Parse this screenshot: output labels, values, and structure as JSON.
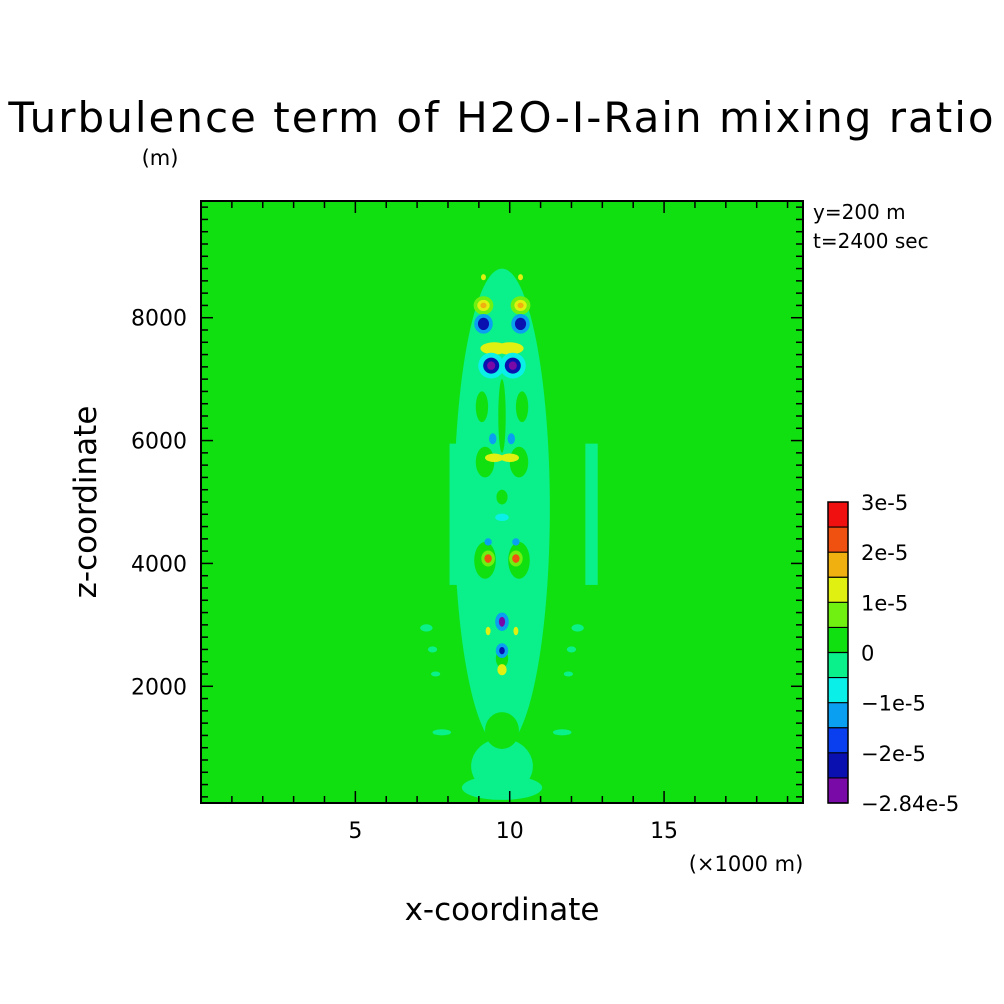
{
  "chart_data": {
    "type": "heatmap",
    "title": "Turbulence term of H2O-I-Rain mixing ratio",
    "units": "(m)",
    "xlabel": "x-coordinate",
    "ylabel": "z-coordinate",
    "x_scale_note": "(×1000 m)",
    "xlim": [
      0,
      19.5
    ],
    "ylim": [
      100,
      9900
    ],
    "x_ticks": [
      5,
      10,
      15
    ],
    "x_tick_labels": [
      "5",
      "10",
      "15"
    ],
    "y_ticks": [
      2000,
      4000,
      6000,
      8000
    ],
    "y_tick_labels": [
      "2000",
      "4000",
      "6000",
      "8000"
    ],
    "info": [
      "y=200 m",
      "t=2400 sec"
    ],
    "colorbar": {
      "levels": [
        -2.84e-05,
        -2.5e-05,
        -2e-05,
        -1.5e-05,
        -1e-05,
        -5e-06,
        0,
        5e-06,
        1e-05,
        1.5e-05,
        2e-05,
        2.5e-05,
        3e-05
      ],
      "colors": [
        "#7a0aa8",
        "#0a10b0",
        "#0a3ff0",
        "#0a9ff0",
        "#0af0e8",
        "#0af08a",
        "#10e010",
        "#70f010",
        "#e0f010",
        "#f0b010",
        "#f05010",
        "#f01010"
      ],
      "labels": [
        {
          "value": 3e-05,
          "text": "3e-5"
        },
        {
          "value": 2e-05,
          "text": "2e-5"
        },
        {
          "value": 1e-05,
          "text": "1e-5"
        },
        {
          "value": 0,
          "text": "0"
        },
        {
          "value": -1e-05,
          "text": "−1e-5"
        },
        {
          "value": -2e-05,
          "text": "−2e-5"
        },
        {
          "value": -2.84e-05,
          "text": "−2.84e-5"
        }
      ]
    },
    "background_value": 2e-06,
    "features": [
      {
        "kind": "rect",
        "x": [
          8.05,
          8.45
        ],
        "z": [
          3650,
          5950
        ],
        "value": -3e-06
      },
      {
        "kind": "rect",
        "x": [
          12.45,
          12.85
        ],
        "z": [
          3650,
          5950
        ],
        "value": -3e-06
      },
      {
        "kind": "ellipse",
        "cx": 9.75,
        "cz": 4900,
        "rx": 1.55,
        "rz": 3900,
        "value": -3e-06
      },
      {
        "kind": "ellipse",
        "cx": 9.75,
        "cz": 700,
        "rx": 1.0,
        "rz": 450,
        "value": -3e-06
      },
      {
        "kind": "ellipse",
        "cx": 9.75,
        "cz": 350,
        "rx": 1.3,
        "rz": 200,
        "value": -3e-06
      },
      {
        "kind": "ellipse",
        "cx": 9.75,
        "cz": 1280,
        "rx": 0.55,
        "rz": 300,
        "value": 2e-06
      },
      {
        "kind": "ellipse",
        "cx": 7.8,
        "cz": 1250,
        "rx": 0.3,
        "rz": 50,
        "value": -3e-06
      },
      {
        "kind": "ellipse",
        "cx": 11.7,
        "cz": 1250,
        "rx": 0.3,
        "rz": 50,
        "value": -3e-06
      },
      {
        "kind": "ellipse",
        "cx": 7.3,
        "cz": 2950,
        "rx": 0.2,
        "rz": 60,
        "value": -3e-06
      },
      {
        "kind": "ellipse",
        "cx": 12.2,
        "cz": 2950,
        "rx": 0.2,
        "rz": 60,
        "value": -3e-06
      },
      {
        "kind": "ellipse",
        "cx": 7.5,
        "cz": 2600,
        "rx": 0.15,
        "rz": 50,
        "value": -3e-06
      },
      {
        "kind": "ellipse",
        "cx": 12.0,
        "cz": 2600,
        "rx": 0.15,
        "rz": 50,
        "value": -3e-06
      },
      {
        "kind": "ellipse",
        "cx": 7.6,
        "cz": 2200,
        "rx": 0.15,
        "rz": 40,
        "value": -3e-06
      },
      {
        "kind": "ellipse",
        "cx": 11.9,
        "cz": 2200,
        "rx": 0.15,
        "rz": 40,
        "value": -3e-06
      },
      {
        "kind": "ellipse",
        "cx": 9.2,
        "cz": 5650,
        "rx": 0.3,
        "rz": 250,
        "value": 3e-06
      },
      {
        "kind": "ellipse",
        "cx": 10.3,
        "cz": 5650,
        "rx": 0.3,
        "rz": 250,
        "value": 3e-06
      },
      {
        "kind": "ellipse",
        "cx": 9.75,
        "cz": 6400,
        "rx": 0.12,
        "rz": 600,
        "value": 3e-06
      },
      {
        "kind": "ellipse",
        "cx": 9.1,
        "cz": 6550,
        "rx": 0.2,
        "rz": 250,
        "value": 3e-06
      },
      {
        "kind": "ellipse",
        "cx": 10.4,
        "cz": 6550,
        "rx": 0.2,
        "rz": 250,
        "value": 3e-06
      },
      {
        "kind": "ellipse",
        "cx": 9.75,
        "cz": 5080,
        "rx": 0.18,
        "rz": 120,
        "value": 3e-06
      },
      {
        "kind": "ellipse",
        "cx": 9.75,
        "cz": 2450,
        "rx": 0.2,
        "rz": 150,
        "value": 3e-06
      },
      {
        "kind": "ellipse",
        "cx": 9.2,
        "cz": 4050,
        "rx": 0.35,
        "rz": 300,
        "value": 3e-06
      },
      {
        "kind": "ellipse",
        "cx": 10.3,
        "cz": 4050,
        "rx": 0.35,
        "rz": 300,
        "value": 3e-06
      },
      {
        "kind": "ellipse",
        "cx": 9.15,
        "cz": 8200,
        "rx": 0.32,
        "rz": 150,
        "value": 8e-06
      },
      {
        "kind": "ellipse",
        "cx": 9.15,
        "cz": 8200,
        "rx": 0.2,
        "rz": 90,
        "value": 1.3e-05
      },
      {
        "kind": "ellipse",
        "cx": 9.15,
        "cz": 8200,
        "rx": 0.1,
        "rz": 45,
        "value": 1.8e-05
      },
      {
        "kind": "ellipse",
        "cx": 10.35,
        "cz": 8200,
        "rx": 0.32,
        "rz": 150,
        "value": 8e-06
      },
      {
        "kind": "ellipse",
        "cx": 10.35,
        "cz": 8200,
        "rx": 0.2,
        "rz": 90,
        "value": 1.3e-05
      },
      {
        "kind": "ellipse",
        "cx": 10.35,
        "cz": 8200,
        "rx": 0.1,
        "rz": 45,
        "value": 1.8e-05
      },
      {
        "kind": "ellipse",
        "cx": 9.15,
        "cz": 7900,
        "rx": 0.3,
        "rz": 160,
        "value": -1.2e-05
      },
      {
        "kind": "ellipse",
        "cx": 9.15,
        "cz": 7900,
        "rx": 0.18,
        "rz": 100,
        "value": -2.2e-05
      },
      {
        "kind": "ellipse",
        "cx": 10.35,
        "cz": 7900,
        "rx": 0.3,
        "rz": 160,
        "value": -1.2e-05
      },
      {
        "kind": "ellipse",
        "cx": 10.35,
        "cz": 7900,
        "rx": 0.18,
        "rz": 100,
        "value": -2.2e-05
      },
      {
        "kind": "ellipse",
        "cx": 9.5,
        "cz": 7500,
        "rx": 0.45,
        "rz": 100,
        "value": 1.2e-05
      },
      {
        "kind": "ellipse",
        "cx": 10.0,
        "cz": 7500,
        "rx": 0.45,
        "rz": 100,
        "value": 1.2e-05
      },
      {
        "kind": "ellipse",
        "cx": 9.4,
        "cz": 7220,
        "rx": 0.42,
        "rz": 210,
        "value": -1e-05
      },
      {
        "kind": "ellipse",
        "cx": 9.4,
        "cz": 7220,
        "rx": 0.26,
        "rz": 130,
        "value": -2.2e-05
      },
      {
        "kind": "ellipse",
        "cx": 9.4,
        "cz": 7220,
        "rx": 0.13,
        "rz": 70,
        "value": -2.7e-05
      },
      {
        "kind": "ellipse",
        "cx": 10.1,
        "cz": 7220,
        "rx": 0.42,
        "rz": 210,
        "value": -1e-05
      },
      {
        "kind": "ellipse",
        "cx": 10.1,
        "cz": 7220,
        "rx": 0.26,
        "rz": 130,
        "value": -2.2e-05
      },
      {
        "kind": "ellipse",
        "cx": 10.1,
        "cz": 7220,
        "rx": 0.13,
        "rz": 70,
        "value": -2.7e-05
      },
      {
        "kind": "ellipse",
        "cx": 9.45,
        "cz": 6030,
        "rx": 0.12,
        "rz": 90,
        "value": -1.2e-05
      },
      {
        "kind": "ellipse",
        "cx": 10.05,
        "cz": 6030,
        "rx": 0.12,
        "rz": 90,
        "value": -1.2e-05
      },
      {
        "kind": "ellipse",
        "cx": 9.5,
        "cz": 5720,
        "rx": 0.3,
        "rz": 70,
        "value": 1e-05
      },
      {
        "kind": "ellipse",
        "cx": 10.0,
        "cz": 5720,
        "rx": 0.3,
        "rz": 70,
        "value": 1e-05
      },
      {
        "kind": "ellipse",
        "cx": 9.3,
        "cz": 4350,
        "rx": 0.12,
        "rz": 60,
        "value": -1.2e-05
      },
      {
        "kind": "ellipse",
        "cx": 10.2,
        "cz": 4350,
        "rx": 0.12,
        "rz": 60,
        "value": -1.2e-05
      },
      {
        "kind": "ellipse",
        "cx": 9.3,
        "cz": 4080,
        "rx": 0.22,
        "rz": 130,
        "value": 8e-06
      },
      {
        "kind": "ellipse",
        "cx": 9.3,
        "cz": 4080,
        "rx": 0.12,
        "rz": 70,
        "value": 2.2e-05
      },
      {
        "kind": "ellipse",
        "cx": 10.2,
        "cz": 4080,
        "rx": 0.22,
        "rz": 130,
        "value": 8e-06
      },
      {
        "kind": "ellipse",
        "cx": 10.2,
        "cz": 4080,
        "rx": 0.12,
        "rz": 70,
        "value": 2.2e-05
      },
      {
        "kind": "ellipse",
        "cx": 9.75,
        "cz": 4750,
        "rx": 0.22,
        "rz": 60,
        "value": -1e-05
      },
      {
        "kind": "ellipse",
        "cx": 9.75,
        "cz": 3050,
        "rx": 0.22,
        "rz": 150,
        "value": -1.2e-05
      },
      {
        "kind": "ellipse",
        "cx": 9.75,
        "cz": 3050,
        "rx": 0.1,
        "rz": 80,
        "value": -2.6e-05
      },
      {
        "kind": "ellipse",
        "cx": 9.75,
        "cz": 2580,
        "rx": 0.2,
        "rz": 120,
        "value": -1.2e-05
      },
      {
        "kind": "ellipse",
        "cx": 9.75,
        "cz": 2580,
        "rx": 0.09,
        "rz": 60,
        "value": -2.5e-05
      },
      {
        "kind": "ellipse",
        "cx": 9.75,
        "cz": 2270,
        "rx": 0.15,
        "rz": 90,
        "value": 1e-05
      },
      {
        "kind": "ellipse",
        "cx": 9.3,
        "cz": 2900,
        "rx": 0.08,
        "rz": 70,
        "value": 1e-05
      },
      {
        "kind": "ellipse",
        "cx": 10.2,
        "cz": 2900,
        "rx": 0.08,
        "rz": 70,
        "value": 1e-05
      },
      {
        "kind": "ellipse",
        "cx": 9.15,
        "cz": 8660,
        "rx": 0.08,
        "rz": 50,
        "value": 1e-05
      },
      {
        "kind": "ellipse",
        "cx": 10.35,
        "cz": 8660,
        "rx": 0.08,
        "rz": 50,
        "value": 1e-05
      }
    ]
  }
}
